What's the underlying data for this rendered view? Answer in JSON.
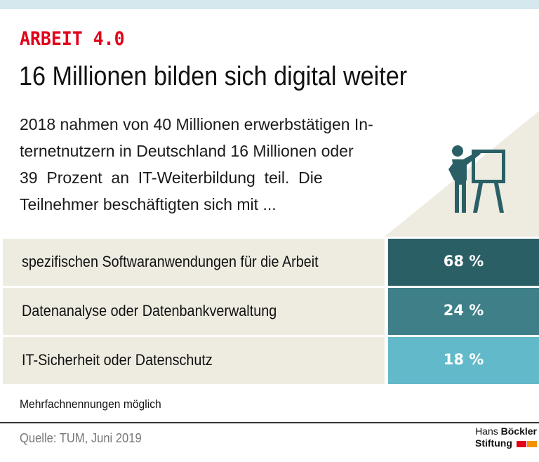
{
  "header": {
    "kicker": "ARBEIT 4.0",
    "title": "16 Millionen bilden sich digital weiter"
  },
  "intro": {
    "lines": [
      "2018 nahmen von 40 Millionen erwerbstätigen In-",
      "ternetnutzern in Deutschland 16 Millionen oder",
      "39  Prozent  an  IT-Weiterbildung  teil.  Die",
      "Teilnehmer beschäftigten sich mit ..."
    ]
  },
  "icon": "presenter-whiteboard-icon",
  "chart_data": {
    "type": "table",
    "title": "16 Millionen bilden sich digital weiter",
    "categories": [
      "spezifischen Softwaranwendungen für die Arbeit",
      "Datenanalyse oder Datenbankverwaltung",
      "IT-Sicherheit oder Datenschutz"
    ],
    "values": [
      68,
      24,
      18
    ],
    "value_labels": [
      "68 %",
      "24 %",
      "18 %"
    ],
    "unit": "%",
    "colors": [
      "#2b5f66",
      "#3f7f88",
      "#62b9c9"
    ]
  },
  "footer": {
    "note": "Mehrfachnennungen möglich",
    "source": "Quelle: TUM, Juni 2019",
    "logo_line1_regular": "Hans",
    "logo_line1_bold": "Böckler",
    "logo_line2": "Stiftung"
  },
  "colors": {
    "accent_red": "#e2001a",
    "accent_orange": "#f39200",
    "icon_teal": "#2b5f66",
    "beige": "#eeebe1",
    "topbar": "#d4e8ee"
  }
}
